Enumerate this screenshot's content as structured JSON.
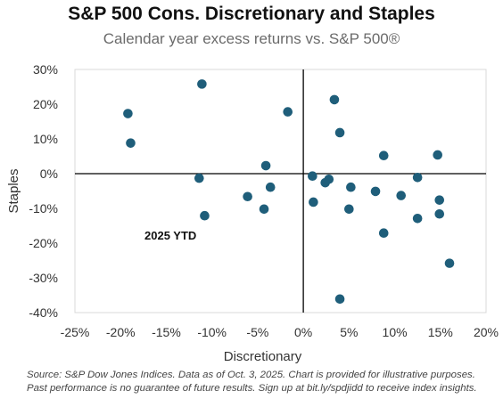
{
  "chart_data": {
    "type": "scatter",
    "title": "S&P 500 Cons. Discretionary and Staples",
    "subtitle": "Calendar year excess returns vs. S&P 500®",
    "xlabel": "Discretionary",
    "ylabel": "Staples",
    "xlim": [
      -25,
      20
    ],
    "ylim": [
      -40,
      30
    ],
    "x_ticks": [
      "-25%",
      "-20%",
      "-15%",
      "-10%",
      "-5%",
      "0%",
      "5%",
      "10%",
      "15%",
      "20%"
    ],
    "y_ticks": [
      "30%",
      "20%",
      "10%",
      "0%",
      "-10%",
      "-20%",
      "-30%",
      "-40%"
    ],
    "annotation": {
      "text": "2025 YTD",
      "x": 5,
      "y": -36
    },
    "marker_color": "#1f5e7a",
    "points": [
      {
        "x": -19.2,
        "y": 17.3
      },
      {
        "x": -18.9,
        "y": 8.8
      },
      {
        "x": -11.1,
        "y": 25.8
      },
      {
        "x": -11.4,
        "y": -1.3
      },
      {
        "x": -10.8,
        "y": -12.1
      },
      {
        "x": -6.1,
        "y": -6.6
      },
      {
        "x": -4.3,
        "y": -10.2
      },
      {
        "x": -4.1,
        "y": 2.3
      },
      {
        "x": -3.6,
        "y": -3.9
      },
      {
        "x": -1.7,
        "y": 17.8
      },
      {
        "x": 1.0,
        "y": -0.7
      },
      {
        "x": 1.1,
        "y": -8.2
      },
      {
        "x": 2.4,
        "y": -2.6
      },
      {
        "x": 2.8,
        "y": -1.6
      },
      {
        "x": 3.4,
        "y": 21.3
      },
      {
        "x": 4.0,
        "y": 11.8
      },
      {
        "x": 5.0,
        "y": -10.2
      },
      {
        "x": 5.2,
        "y": -3.9
      },
      {
        "x": 7.9,
        "y": -5.1
      },
      {
        "x": 8.8,
        "y": 5.2
      },
      {
        "x": 8.8,
        "y": -17.1
      },
      {
        "x": 10.7,
        "y": -6.3
      },
      {
        "x": 12.5,
        "y": -1.1
      },
      {
        "x": 12.5,
        "y": -12.9
      },
      {
        "x": 14.7,
        "y": 5.4
      },
      {
        "x": 14.9,
        "y": -7.6
      },
      {
        "x": 14.9,
        "y": -11.6
      },
      {
        "x": 16.0,
        "y": -25.8
      },
      {
        "x": 4.0,
        "y": -36.1
      }
    ]
  },
  "source_note": "Source: S&P Dow Jones Indices.  Data as of Oct. 3, 2025. Chart is provided for illustrative purposes. Past performance is no guarantee of future results. Sign up at bit.ly/spdjidd to receive index insights."
}
